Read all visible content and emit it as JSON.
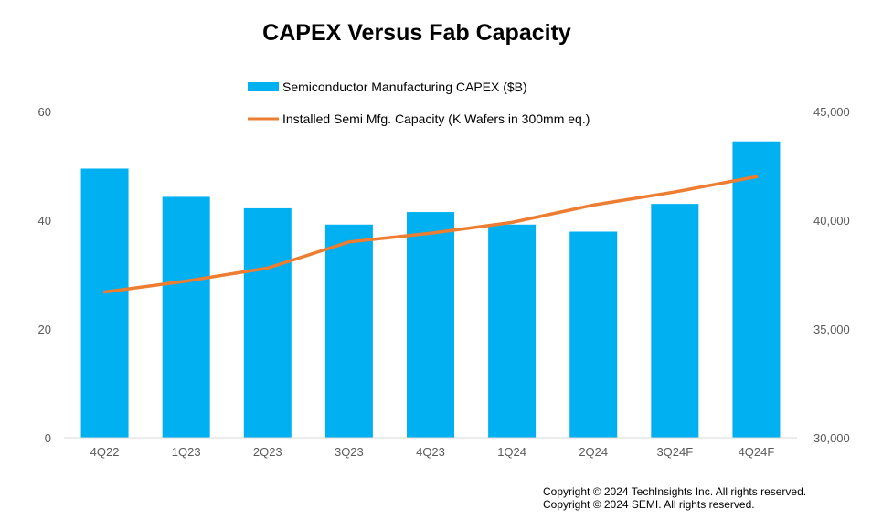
{
  "chart_data": {
    "type": "bar+line",
    "title": "CAPEX Versus Fab Capacity",
    "categories": [
      "4Q22",
      "1Q23",
      "2Q23",
      "3Q23",
      "4Q23",
      "1Q24",
      "2Q24",
      "3Q24F",
      "4Q24F"
    ],
    "series": [
      {
        "name": "Semiconductor Manufacturing CAPEX ($B)",
        "type": "bar",
        "axis": "left",
        "color": "#00B0F0",
        "values": [
          49.5,
          44.3,
          42.2,
          39.2,
          41.5,
          39.2,
          37.9,
          43.0,
          54.5
        ]
      },
      {
        "name": "Installed Semi Mfg. Capacity (K Wafers in 300mm eq.)",
        "type": "line",
        "axis": "right",
        "color": "#ED7D31",
        "values": [
          36700,
          37200,
          37800,
          39000,
          39400,
          39900,
          40700,
          41300,
          42000
        ]
      }
    ],
    "y_left": {
      "range": [
        0,
        60
      ],
      "ticks": [
        "0",
        "20",
        "40",
        "60"
      ]
    },
    "y_right": {
      "range": [
        30000,
        45000
      ],
      "ticks": [
        "30,000",
        "35,000",
        "40,000",
        "45,000"
      ]
    },
    "legend_position": "top-center",
    "grid": false
  },
  "copyright": [
    "Copyright © 2024 TechInsights Inc.  All rights reserved.",
    "Copyright © 2024 SEMI.  All rights reserved."
  ]
}
